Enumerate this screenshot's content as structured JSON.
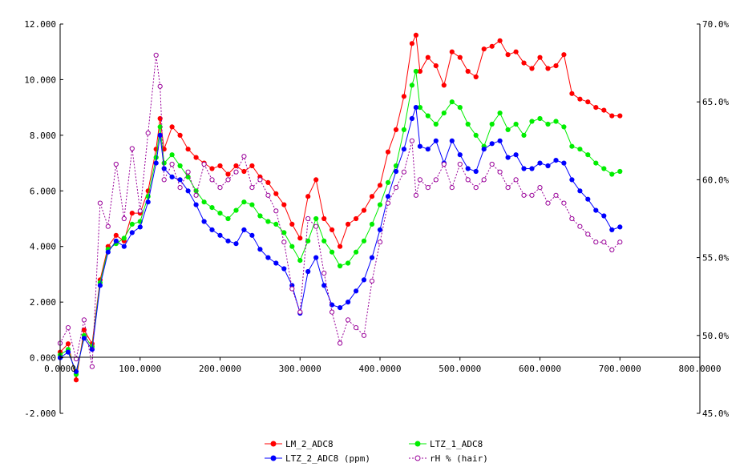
{
  "chart_data": {
    "type": "line",
    "x_ticks": [
      "0.0000",
      "100.0000",
      "200.0000",
      "300.0000",
      "400.0000",
      "500.0000",
      "600.0000",
      "700.0000",
      "800.0000"
    ],
    "y_left_ticks": [
      "-2.000",
      "0.000",
      "2.000",
      "4.000",
      "6.000",
      "8.000",
      "10.000",
      "12.000"
    ],
    "y_right_ticks": [
      "45.0%",
      "50.0%",
      "55.0%",
      "60.0%",
      "65.0%",
      "70.0%"
    ],
    "xlim": [
      0,
      800
    ],
    "ylim_left": [
      -2,
      12
    ],
    "ylim_right": [
      45,
      70
    ],
    "grid": false,
    "legend_placement": "bottom",
    "series": [
      {
        "name": "LM_2_ADC8",
        "color": "#ff0000",
        "axis": "left",
        "marker": "filled-circle",
        "x": [
          0,
          10,
          20,
          30,
          40,
          50,
          60,
          70,
          80,
          90,
          100,
          110,
          120,
          125,
          130,
          140,
          150,
          160,
          170,
          180,
          190,
          200,
          210,
          220,
          230,
          240,
          250,
          260,
          270,
          280,
          290,
          300,
          310,
          320,
          330,
          340,
          350,
          360,
          370,
          380,
          390,
          400,
          410,
          420,
          430,
          440,
          445,
          450,
          460,
          470,
          480,
          490,
          500,
          510,
          520,
          530,
          540,
          550,
          560,
          570,
          580,
          590,
          600,
          610,
          620,
          630,
          640,
          650,
          660,
          670,
          680,
          690,
          700
        ],
        "y": [
          0.2,
          0.5,
          -0.8,
          1.0,
          0.5,
          2.8,
          4.0,
          4.4,
          4.2,
          5.2,
          5.2,
          6.0,
          7.5,
          8.6,
          7.5,
          8.3,
          8.0,
          7.5,
          7.2,
          7.0,
          6.8,
          6.9,
          6.6,
          6.9,
          6.7,
          6.9,
          6.5,
          6.3,
          5.9,
          5.5,
          4.8,
          4.3,
          5.8,
          6.4,
          5.0,
          4.6,
          4.0,
          4.8,
          5.0,
          5.3,
          5.8,
          6.2,
          7.4,
          8.2,
          9.4,
          11.3,
          11.6,
          10.3,
          10.8,
          10.5,
          9.8,
          11.0,
          10.8,
          10.3,
          10.1,
          11.1,
          11.2,
          11.4,
          10.9,
          11.0,
          10.6,
          10.4,
          10.8,
          10.4,
          10.5,
          10.9,
          9.5,
          9.3,
          9.2,
          9.0,
          8.9,
          8.7,
          8.7
        ]
      },
      {
        "name": "LTZ_1_ADC8",
        "color": "#00ee00",
        "axis": "left",
        "marker": "filled-circle",
        "x": [
          0,
          10,
          20,
          30,
          40,
          50,
          60,
          70,
          80,
          90,
          100,
          110,
          120,
          125,
          130,
          140,
          150,
          160,
          170,
          180,
          190,
          200,
          210,
          220,
          230,
          240,
          250,
          260,
          270,
          280,
          290,
          300,
          310,
          320,
          330,
          340,
          350,
          360,
          370,
          380,
          390,
          400,
          410,
          420,
          430,
          440,
          445,
          450,
          460,
          470,
          480,
          490,
          500,
          510,
          520,
          530,
          540,
          550,
          560,
          570,
          580,
          590,
          600,
          610,
          620,
          630,
          640,
          650,
          660,
          670,
          680,
          690,
          700
        ],
        "y": [
          0.1,
          0.3,
          -0.6,
          0.8,
          0.4,
          2.7,
          3.9,
          4.1,
          4.3,
          4.8,
          4.9,
          5.8,
          7.2,
          8.3,
          7.0,
          7.3,
          6.9,
          6.5,
          6.0,
          5.6,
          5.4,
          5.2,
          5.0,
          5.3,
          5.6,
          5.5,
          5.1,
          4.9,
          4.8,
          4.5,
          4.0,
          3.5,
          4.2,
          5.0,
          4.2,
          3.8,
          3.3,
          3.4,
          3.8,
          4.2,
          4.8,
          5.5,
          6.3,
          6.9,
          8.2,
          9.8,
          10.3,
          9.0,
          8.7,
          8.4,
          8.8,
          9.2,
          9.0,
          8.4,
          8.0,
          7.6,
          8.4,
          8.8,
          8.2,
          8.4,
          8.0,
          8.5,
          8.6,
          8.4,
          8.5,
          8.3,
          7.6,
          7.5,
          7.3,
          7.0,
          6.8,
          6.6,
          6.7
        ]
      },
      {
        "name": "LTZ_2_ADC8 (ppm)",
        "color": "#0000ff",
        "axis": "left",
        "marker": "filled-circle",
        "x": [
          0,
          10,
          20,
          30,
          40,
          50,
          60,
          70,
          80,
          90,
          100,
          110,
          120,
          125,
          130,
          140,
          150,
          160,
          170,
          180,
          190,
          200,
          210,
          220,
          230,
          240,
          250,
          260,
          270,
          280,
          290,
          300,
          310,
          320,
          330,
          340,
          350,
          360,
          370,
          380,
          390,
          400,
          410,
          420,
          430,
          440,
          445,
          450,
          460,
          470,
          480,
          490,
          500,
          510,
          520,
          530,
          540,
          550,
          560,
          570,
          580,
          590,
          600,
          610,
          620,
          630,
          640,
          650,
          660,
          670,
          680,
          690,
          700
        ],
        "y": [
          0.0,
          0.2,
          -0.5,
          0.7,
          0.3,
          2.6,
          3.8,
          4.2,
          4.0,
          4.5,
          4.7,
          5.6,
          7.0,
          8.0,
          6.8,
          6.5,
          6.4,
          6.0,
          5.5,
          4.9,
          4.6,
          4.4,
          4.2,
          4.1,
          4.6,
          4.4,
          3.9,
          3.6,
          3.4,
          3.2,
          2.6,
          1.6,
          3.1,
          3.6,
          2.6,
          1.9,
          1.8,
          2.0,
          2.4,
          2.8,
          3.6,
          4.6,
          5.8,
          6.7,
          7.5,
          8.6,
          9.0,
          7.6,
          7.5,
          7.8,
          7.0,
          7.8,
          7.3,
          6.8,
          6.7,
          7.5,
          7.7,
          7.8,
          7.2,
          7.3,
          6.8,
          6.8,
          7.0,
          6.9,
          7.1,
          7.0,
          6.4,
          6.0,
          5.7,
          5.3,
          5.1,
          4.6,
          4.7
        ]
      },
      {
        "name": "rH % (hair)",
        "color": "#990099",
        "axis": "right",
        "marker": "open-circle",
        "x": [
          0,
          10,
          20,
          30,
          40,
          50,
          60,
          70,
          80,
          90,
          100,
          110,
          120,
          125,
          130,
          140,
          150,
          160,
          170,
          180,
          190,
          200,
          210,
          220,
          230,
          240,
          250,
          260,
          270,
          280,
          290,
          300,
          310,
          320,
          330,
          340,
          350,
          360,
          370,
          380,
          390,
          400,
          410,
          420,
          430,
          440,
          445,
          450,
          460,
          470,
          480,
          490,
          500,
          510,
          520,
          530,
          540,
          550,
          560,
          570,
          580,
          590,
          600,
          610,
          620,
          630,
          640,
          650,
          660,
          670,
          680,
          690,
          700
        ],
        "y": [
          49.5,
          50.5,
          48.5,
          51.0,
          48.0,
          58.5,
          57.0,
          61.0,
          57.5,
          62.0,
          58.0,
          63.0,
          68.0,
          66.0,
          60.0,
          61.0,
          59.5,
          60.5,
          59.0,
          61.0,
          60.0,
          59.5,
          60.0,
          60.5,
          61.5,
          59.5,
          60.0,
          59.0,
          58.0,
          56.0,
          53.0,
          51.5,
          57.5,
          57.0,
          54.0,
          51.5,
          49.5,
          51.0,
          50.5,
          50.0,
          53.5,
          56.0,
          58.5,
          59.5,
          60.5,
          62.5,
          59.0,
          60.0,
          59.5,
          60.0,
          61.0,
          59.5,
          61.0,
          60.0,
          59.5,
          60.0,
          61.0,
          60.5,
          59.5,
          60.0,
          59.0,
          59.0,
          59.5,
          58.5,
          59.0,
          58.5,
          57.5,
          57.0,
          56.5,
          56.0,
          56.0,
          55.5,
          56.0
        ]
      }
    ]
  }
}
